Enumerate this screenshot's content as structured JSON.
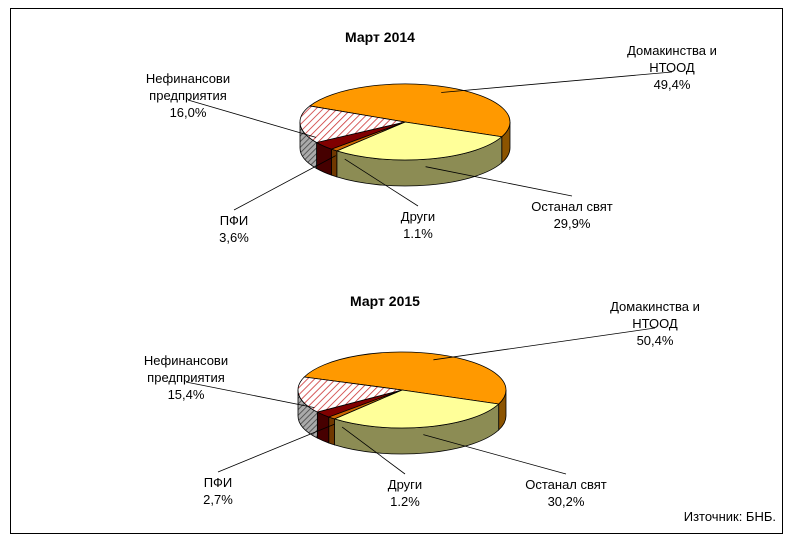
{
  "chart_data": [
    {
      "type": "pie3d",
      "title": "Март 2014",
      "categories": [
        "Домакинства и НТООД",
        "Останал свят",
        "Други",
        "ПФИ",
        "Нефинансови предприятия"
      ],
      "values": [
        49.4,
        29.9,
        1.1,
        3.6,
        16.0
      ],
      "value_labels": [
        "49,4%",
        "29,9%",
        "1.1%",
        "3,6%",
        "16,0%"
      ],
      "colors": [
        "#ff9900",
        "#ffff99",
        "#cc6600",
        "#800000",
        "#cc3333"
      ],
      "hatch": [
        false,
        false,
        false,
        false,
        true
      ]
    },
    {
      "type": "pie3d",
      "title": "Март 2015",
      "categories": [
        "Домакинства и НТООД",
        "Останал свят",
        "Други",
        "ПФИ",
        "Нефинансови предприятия"
      ],
      "values": [
        50.4,
        30.2,
        1.2,
        2.7,
        15.4
      ],
      "value_labels": [
        "50,4%",
        "30,2%",
        "1.2%",
        "2,7%",
        "15,4%"
      ],
      "colors": [
        "#ff9900",
        "#ffff99",
        "#cc6600",
        "#800000",
        "#cc3333"
      ],
      "hatch": [
        false,
        false,
        false,
        false,
        true
      ]
    }
  ],
  "source": "Източник: БНБ."
}
